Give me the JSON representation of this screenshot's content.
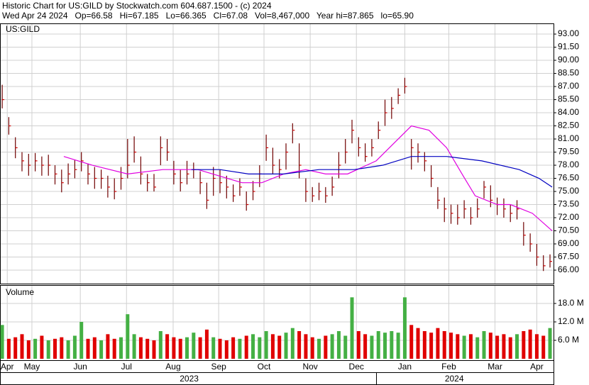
{
  "chart_data": [
    {
      "type": "ohlc",
      "title": "Historic Chart for US:GILD by Stockwatch.com 604.687.1500 - (c) 2024",
      "subtitle": "Wed Apr 24 2024   Op=66.58   Hi=67.185   Lo=66.365   Cl=67.08   Vol=8,467,000   Year hi=87.865   lo=65.90",
      "symbol": "US:GILD",
      "x": [
        0,
        3,
        6,
        9,
        12,
        15,
        18,
        21,
        24,
        27,
        30,
        33,
        36,
        39,
        42,
        45,
        48,
        51,
        54,
        57,
        60,
        63,
        66,
        69,
        72,
        75,
        78,
        81,
        84,
        87,
        90,
        93,
        96,
        99,
        102,
        105,
        108,
        111,
        114,
        117,
        120,
        123,
        126,
        129,
        132,
        135,
        138,
        141,
        144,
        147,
        150,
        153,
        156,
        159,
        162,
        165,
        168,
        171,
        174,
        177,
        180,
        183,
        186,
        189,
        192,
        195,
        198,
        201,
        204,
        207,
        210,
        213,
        216,
        219,
        222,
        225,
        228,
        231,
        234,
        237,
        240,
        243,
        246,
        249
      ],
      "high": [
        87.2,
        83.5,
        81.2,
        79.5,
        79.3,
        79.4,
        79,
        79.2,
        78,
        77.5,
        78.2,
        78.6,
        79.5,
        78.2,
        77.8,
        77.5,
        76.8,
        76.5,
        77.8,
        81,
        81.3,
        79,
        77,
        77,
        81.3,
        81,
        78.5,
        77.5,
        78.5,
        78.3,
        77.3,
        76,
        77.8,
        77.5,
        76.8,
        75.8,
        76.5,
        75,
        76.2,
        78,
        81.5,
        80,
        78.7,
        80.5,
        82.8,
        80.5,
        76.5,
        75.5,
        76,
        75.5,
        76.7,
        79.5,
        81,
        83.2,
        81.2,
        80.5,
        81,
        83,
        85.5,
        85.8,
        86.8,
        88,
        81,
        80.5,
        79.5,
        78,
        75.5,
        74.3,
        73.5,
        73.5,
        74,
        73.2,
        74.2,
        76.2,
        75.7,
        74.3,
        74.2,
        73.5,
        74,
        71.5,
        70.2,
        69,
        67.7,
        67.8
      ],
      "low": [
        84.5,
        81.5,
        78.8,
        77.3,
        76.8,
        77.3,
        76.8,
        76.8,
        75.8,
        74.9,
        75.8,
        76.5,
        77.3,
        75.8,
        75.3,
        75.3,
        74.3,
        74.1,
        75.2,
        76.5,
        78.3,
        75.8,
        75,
        75,
        78,
        78.5,
        75.8,
        75,
        75.8,
        76.5,
        74.7,
        73,
        74.5,
        74.8,
        74.2,
        73.8,
        74.5,
        72.8,
        74,
        75.5,
        78.5,
        77,
        76.5,
        77.5,
        80.5,
        76.5,
        73.8,
        73.8,
        74,
        73.7,
        74.5,
        76.5,
        78.2,
        80.5,
        79,
        78.4,
        79,
        81,
        82.5,
        83.3,
        85,
        86.2,
        77.5,
        78.3,
        77.3,
        75.5,
        73,
        71.5,
        71.3,
        71.2,
        71.9,
        71.2,
        72,
        74.2,
        73.2,
        72.3,
        72,
        71.5,
        71.8,
        68.8,
        68.1,
        66.5,
        65.9,
        66.3
      ],
      "close": [
        85.5,
        82.5,
        80,
        78.5,
        78,
        78.5,
        78,
        78,
        77,
        76,
        77,
        77.5,
        78.5,
        77,
        76.5,
        76.5,
        75.5,
        75,
        76.5,
        78,
        79.5,
        77,
        76,
        75.5,
        80,
        79.5,
        77,
        76,
        77,
        77.5,
        76,
        74,
        76.5,
        76,
        75.5,
        74.5,
        75.5,
        73.5,
        75,
        77,
        80,
        78,
        77.5,
        79.5,
        82,
        78,
        75,
        74.5,
        75,
        74.5,
        75.5,
        78,
        79.5,
        82,
        80,
        79,
        80,
        82,
        84,
        84.5,
        86,
        87,
        80,
        79.5,
        78.5,
        76.5,
        74,
        73,
        72.5,
        72,
        73,
        72,
        73,
        75.5,
        74,
        73.5,
        73,
        72.5,
        73,
        70,
        69,
        67.5,
        66.5,
        67
      ],
      "color": "#700000",
      "close_color": "#d00000",
      "lines": [
        {
          "color": "#e000e0",
          "x": [
            28,
            41,
            57,
            73,
            89,
            109,
            118,
            128,
            138,
            147,
            157,
            170,
            178,
            186,
            194,
            202,
            209,
            215,
            225,
            231,
            241,
            250
          ],
          "values": [
            79,
            78,
            77,
            77.5,
            77.5,
            76,
            76,
            77,
            77.5,
            77,
            77,
            78.5,
            80.5,
            82.5,
            82,
            80,
            77,
            74.5,
            73.5,
            73.5,
            72.5,
            70.5
          ]
        },
        {
          "color": "#0000c0",
          "x": [
            86,
            99,
            112,
            128,
            144,
            160,
            173,
            186,
            202,
            218,
            235,
            244,
            250
          ],
          "values": [
            77.5,
            77.5,
            77,
            77,
            77.5,
            77.5,
            78,
            79,
            79,
            78.5,
            77.5,
            76.5,
            75.5
          ]
        }
      ],
      "xlim": [
        -1,
        250.6
      ],
      "ylim": [
        64.46,
        94.22
      ],
      "yticks": [
        {
          "value": 66,
          "label": "66.00"
        },
        {
          "value": 67.5,
          "label": "67.50"
        },
        {
          "value": 69,
          "label": "69.00"
        },
        {
          "value": 70.5,
          "label": "70.50"
        },
        {
          "value": 72,
          "label": "72.00"
        },
        {
          "value": 73.5,
          "label": "73.50"
        },
        {
          "value": 75,
          "label": "75.00"
        },
        {
          "value": 76.5,
          "label": "76.50"
        },
        {
          "value": 78,
          "label": "78.00"
        },
        {
          "value": 79.5,
          "label": "79.50"
        },
        {
          "value": 81,
          "label": "81.00"
        },
        {
          "value": 82.5,
          "label": "82.50"
        },
        {
          "value": 84,
          "label": "84.00"
        },
        {
          "value": 85.5,
          "label": "85.50"
        },
        {
          "value": 87,
          "label": "87.00"
        },
        {
          "value": 88.5,
          "label": "88.50"
        },
        {
          "value": 90,
          "label": "90.00"
        },
        {
          "value": 91.5,
          "label": "91.50"
        },
        {
          "value": 93,
          "label": "93.00"
        }
      ],
      "xticks": [
        {
          "value": 2.3,
          "label": "Apr"
        },
        {
          "value": 13.5,
          "label": "May"
        },
        {
          "value": 35.5,
          "label": "Jun"
        },
        {
          "value": 56.5,
          "label": "Jul"
        },
        {
          "value": 77.7,
          "label": "Aug"
        },
        {
          "value": 98.4,
          "label": "Sep"
        },
        {
          "value": 119,
          "label": "Oct"
        },
        {
          "value": 140,
          "label": "Nov"
        },
        {
          "value": 161,
          "label": "Dec"
        },
        {
          "value": 183,
          "label": "Jan"
        },
        {
          "value": 203,
          "label": "Feb"
        },
        {
          "value": 224,
          "label": "Mar"
        },
        {
          "value": 243,
          "label": "Apr"
        }
      ],
      "years": [
        {
          "value": 85,
          "label": "2023"
        },
        {
          "value": 205.5,
          "label": "2024"
        }
      ],
      "grid": true
    },
    {
      "type": "bar",
      "title": "Volume",
      "x": [
        0,
        3,
        6,
        9,
        12,
        15,
        18,
        21,
        24,
        27,
        30,
        33,
        36,
        39,
        42,
        45,
        48,
        51,
        54,
        57,
        60,
        63,
        66,
        69,
        72,
        75,
        78,
        81,
        84,
        87,
        90,
        93,
        96,
        99,
        102,
        105,
        108,
        111,
        114,
        117,
        120,
        123,
        126,
        129,
        132,
        135,
        138,
        141,
        144,
        147,
        150,
        153,
        156,
        159,
        162,
        165,
        168,
        171,
        174,
        177,
        180,
        183,
        186,
        189,
        192,
        195,
        198,
        201,
        204,
        207,
        210,
        213,
        216,
        219,
        222,
        225,
        228,
        231,
        234,
        237,
        240,
        243,
        246,
        249
      ],
      "values": [
        11,
        6.5,
        7,
        8,
        6,
        6.5,
        7.5,
        6,
        6.5,
        7,
        6,
        7.5,
        12,
        6.5,
        7,
        6,
        8,
        6.5,
        7,
        14.5,
        8,
        7,
        6.5,
        6,
        9,
        8,
        7,
        6.5,
        7,
        8.5,
        7,
        9.5,
        7,
        6.5,
        6,
        7,
        6.5,
        7.5,
        8,
        7,
        9,
        8,
        7.5,
        8.5,
        10,
        9,
        8,
        7,
        6.5,
        7.5,
        8,
        9,
        7.5,
        20,
        9,
        8,
        7.5,
        9,
        8.5,
        9,
        8.5,
        20,
        11,
        10,
        9,
        8.5,
        10,
        9,
        8.5,
        8,
        7.5,
        8,
        7,
        9,
        8.5,
        7.5,
        8,
        7,
        8,
        9,
        9.5,
        8,
        7.5,
        10
      ],
      "up_color": "#44b044",
      "down_color": "#e00000",
      "ylim": [
        0,
        24
      ],
      "yticks": [
        {
          "value": 6,
          "label": "6.0 M"
        },
        {
          "value": 12,
          "label": "12.0 M"
        },
        {
          "value": 18,
          "label": "18.0 M"
        }
      ],
      "grid": true
    }
  ]
}
